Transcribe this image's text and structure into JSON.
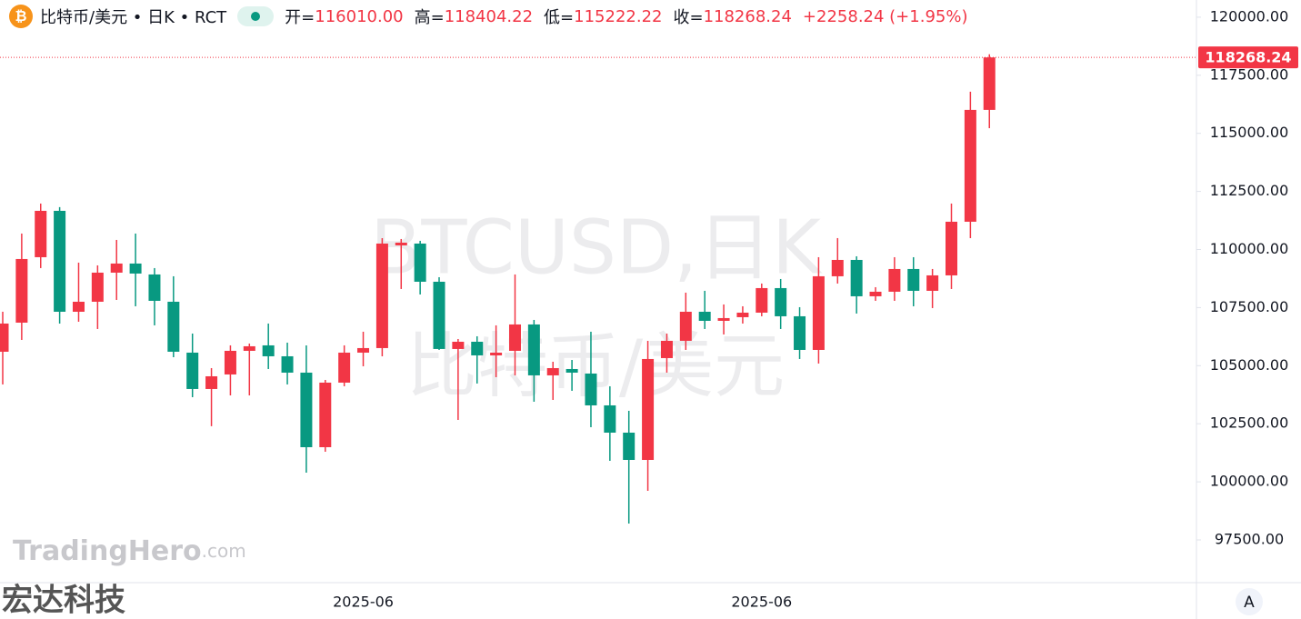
{
  "header": {
    "symbol": "比特币/美元 • 日K • RCT",
    "stats": [
      {
        "label": "开=",
        "value": "116010.00"
      },
      {
        "label": "高=",
        "value": "118404.22"
      },
      {
        "label": "低=",
        "value": "115222.22"
      },
      {
        "label": "收=",
        "value": "118268.24"
      }
    ],
    "change": "+2258.24 (+1.95%)"
  },
  "watermark": {
    "line1": "BTCUSD,日K",
    "line2": "比特币/美元",
    "brand": "TradingHero",
    "brand_suffix": ".com",
    "corner": "宏达科技"
  },
  "axis_button": "A",
  "chart_data": {
    "type": "candlestick",
    "up_color": "#f23645",
    "down_color": "#089981",
    "categories": [
      null,
      null,
      null,
      null,
      null,
      null,
      null,
      null,
      null,
      null,
      null,
      null,
      null,
      null,
      null,
      null,
      null,
      null,
      null,
      "2025-06",
      null,
      null,
      null,
      null,
      null,
      null,
      null,
      null,
      null,
      null,
      null,
      null,
      null,
      null,
      null,
      null,
      null,
      null,
      null,
      null,
      "2025-06",
      null,
      null,
      null,
      null,
      null,
      null,
      null,
      null,
      null,
      null,
      null,
      null
    ],
    "open": [
      105600,
      106852,
      109669,
      111665,
      107321,
      107752,
      109004,
      109396,
      108926,
      107752,
      105561,
      103996,
      104622,
      105639,
      105874,
      105404,
      104700,
      101491,
      104270,
      105561,
      105757,
      110178,
      110256,
      108613,
      105718,
      106030,
      105443,
      105639,
      106774,
      104583,
      104856,
      104661,
      103291,
      102117,
      100943,
      105326,
      106070,
      107321,
      106930,
      107087,
      107282,
      108339,
      107126,
      105678,
      108848,
      109552,
      107987,
      108183,
      109161,
      108222,
      108887,
      111196,
      116010
    ],
    "high": [
      107322,
      110687,
      111978,
      111822,
      109435,
      109317,
      110413,
      110687,
      109200,
      108848,
      106382,
      104895,
      105874,
      105952,
      106813,
      105991,
      105874,
      104387,
      105874,
      106461,
      110491,
      110452,
      110374,
      108808,
      106147,
      106265,
      106735,
      108926,
      106970,
      105169,
      105247,
      106461,
      104113,
      103057,
      106070,
      106382,
      108143,
      108222,
      107635,
      107556,
      108535,
      108730,
      107517,
      109669,
      110491,
      109708,
      108378,
      109669,
      109669,
      109161,
      111978,
      116791,
      118404.22
    ],
    "low": [
      104192,
      106108,
      109200,
      106813,
      106891,
      106578,
      107830,
      107556,
      106735,
      105365,
      103643,
      102395,
      103721,
      103721,
      104856,
      104192,
      100395,
      101295,
      104113,
      104974,
      105404,
      108300,
      108065,
      105678,
      102665,
      104231,
      104504,
      104583,
      103448,
      103526,
      103917,
      102352,
      100904,
      98204,
      99613,
      104700,
      105678,
      106578,
      106343,
      106813,
      107126,
      106578,
      105287,
      105091,
      108535,
      107243,
      107791,
      107791,
      107556,
      107478,
      108300,
      110491,
      115222.22
    ],
    "close": [
      106813,
      109591,
      111665,
      107321,
      107752,
      109004,
      109396,
      108965,
      107791,
      105600,
      103996,
      104543,
      105639,
      105835,
      105404,
      104700,
      101491,
      104270,
      105561,
      105757,
      110256,
      110295,
      108613,
      105718,
      106030,
      105443,
      105561,
      106774,
      104583,
      104895,
      104700,
      103291,
      102117,
      100943,
      105287,
      106070,
      107321,
      106930,
      107048,
      107282,
      108339,
      107126,
      105678,
      108848,
      109552,
      107987,
      108183,
      109161,
      108222,
      108887,
      111196,
      116010,
      118268.24
    ],
    "ylim": [
      95700,
      120740
    ],
    "yticks": [
      {
        "value": 97500,
        "label": "97500.00"
      },
      {
        "value": 100000,
        "label": "100000.00"
      },
      {
        "value": 102500,
        "label": "102500.00"
      },
      {
        "value": 105000,
        "label": "105000.00"
      },
      {
        "value": 107500,
        "label": "107500.00"
      },
      {
        "value": 110000,
        "label": "110000.00"
      },
      {
        "value": 112500,
        "label": "112500.00"
      },
      {
        "value": 115000,
        "label": "115000.00"
      },
      {
        "value": 117500,
        "label": "117500.00"
      },
      {
        "value": 120000,
        "label": "120000.00"
      }
    ]
  }
}
